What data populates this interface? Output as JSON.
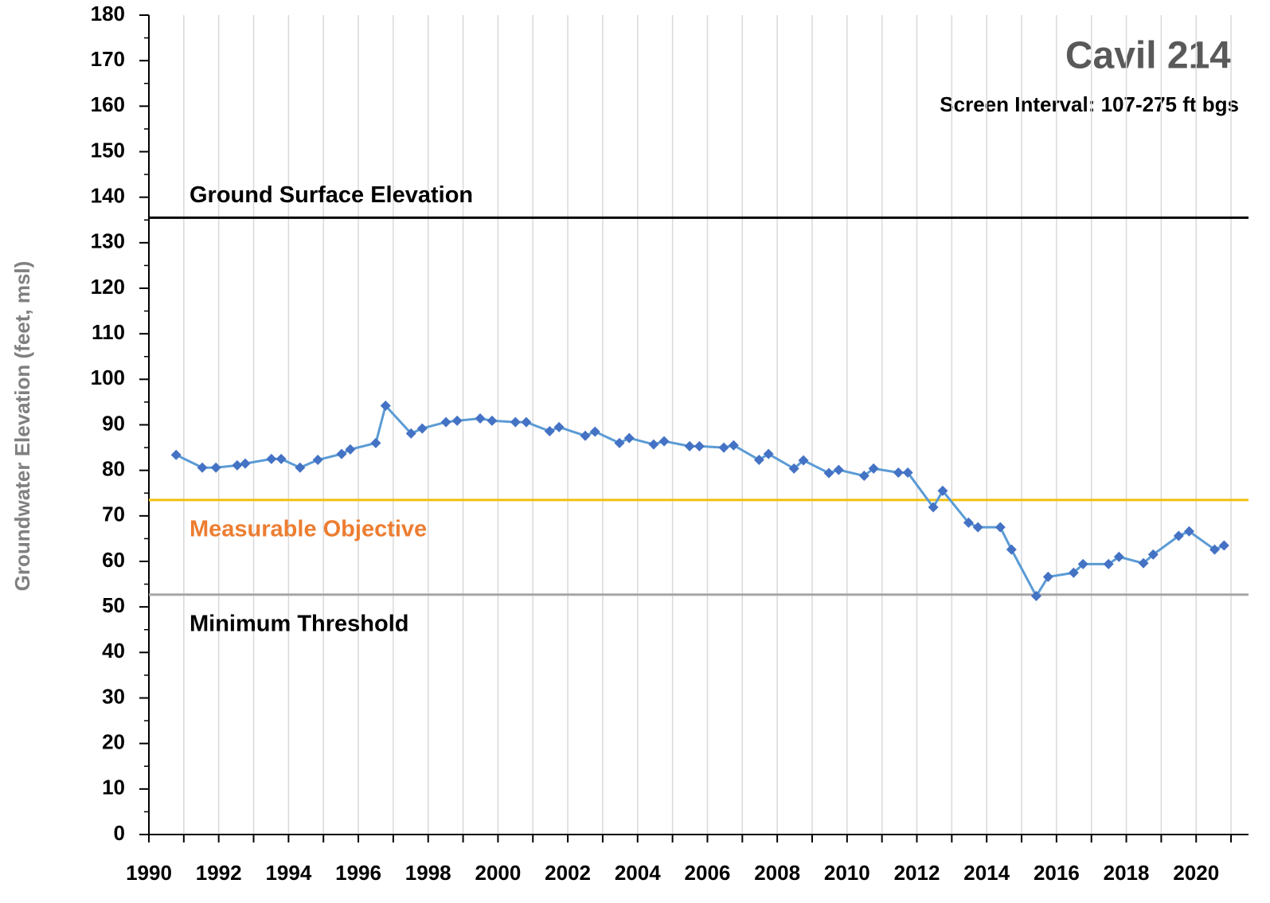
{
  "chart_data": {
    "type": "line",
    "title": "Cavil 214",
    "subtitle": "Screen Interval: 107-275 ft bgs",
    "ylabel": "Groundwater Elevation (feet, msl)",
    "xlim": [
      1990,
      2021.5
    ],
    "xticks": [
      1990,
      1992,
      1994,
      1996,
      1998,
      2000,
      2002,
      2004,
      2006,
      2008,
      2010,
      2012,
      2014,
      2016,
      2018,
      2020
    ],
    "xminorticks": [
      1991,
      1993,
      1995,
      1997,
      1999,
      2001,
      2003,
      2005,
      2007,
      2009,
      2011,
      2013,
      2015,
      2017,
      2019,
      2021
    ],
    "ylim": [
      0,
      180
    ],
    "yticks": [
      0,
      10,
      20,
      30,
      40,
      50,
      60,
      70,
      80,
      90,
      100,
      110,
      120,
      130,
      140,
      150,
      160,
      170,
      180
    ],
    "yminorticks": [
      5,
      15,
      25,
      35,
      45,
      55,
      65,
      75,
      85,
      95,
      105,
      115,
      125,
      135,
      145,
      155,
      165,
      175
    ],
    "grid": true,
    "hlines": [
      {
        "label": "Ground Surface Elevation",
        "value": 135.5,
        "color": "#000000",
        "label_color": "#000000"
      },
      {
        "label": "Measurable Objective",
        "value": 73.5,
        "color": "#f2c010",
        "label_color": "#ed7d31"
      },
      {
        "label": "Minimum Threshold",
        "value": 52.7,
        "color": "#a6a6a6",
        "label_color": "#000000"
      }
    ],
    "series": [
      {
        "color": "#5b9bd5",
        "marker_color": "#4472c4",
        "x": [
          1990.78,
          1991.53,
          1991.92,
          1992.53,
          1992.76,
          1993.51,
          1993.79,
          1994.33,
          1994.84,
          1995.52,
          1995.77,
          1996.5,
          1996.78,
          1997.51,
          1997.83,
          1998.51,
          1998.83,
          1999.49,
          1999.83,
          2000.5,
          2000.81,
          2001.48,
          2001.75,
          2002.5,
          2002.78,
          2003.48,
          2003.76,
          2004.46,
          2004.76,
          2005.49,
          2005.77,
          2006.47,
          2006.75,
          2007.48,
          2007.75,
          2008.48,
          2008.75,
          2009.48,
          2009.76,
          2010.49,
          2010.76,
          2011.47,
          2011.74,
          2012.47,
          2012.74,
          2013.48,
          2013.75,
          2014.39,
          2014.71,
          2015.42,
          2015.76,
          2016.49,
          2016.76,
          2017.49,
          2017.79,
          2018.49,
          2018.77,
          2019.5,
          2019.8,
          2020.53,
          2020.8
        ],
        "values": [
          83.4,
          80.6,
          80.6,
          81.1,
          81.5,
          82.5,
          82.5,
          80.6,
          82.3,
          83.6,
          84.6,
          86.0,
          94.2,
          88.1,
          89.2,
          90.6,
          90.9,
          91.4,
          90.9,
          90.6,
          90.6,
          88.6,
          89.5,
          87.6,
          88.5,
          86.0,
          87.1,
          85.7,
          86.4,
          85.3,
          85.3,
          85.0,
          85.5,
          82.3,
          83.6,
          80.4,
          82.2,
          79.4,
          80.1,
          78.8,
          80.4,
          79.5,
          79.5,
          71.9,
          75.5,
          68.5,
          67.5,
          67.5,
          62.6,
          52.4,
          56.6,
          57.5,
          59.4,
          59.4,
          61.0,
          59.6,
          61.5,
          65.6,
          66.6,
          62.6,
          63.5
        ]
      }
    ]
  }
}
